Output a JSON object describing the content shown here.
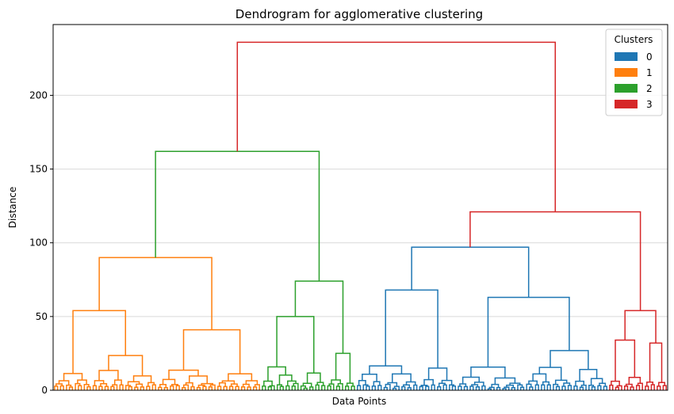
{
  "chart_data": {
    "type": "dendrogram",
    "title": "Dendrogram for agglomerative clustering",
    "xlabel": "Data Points",
    "ylabel": "Distance",
    "ylim": [
      0,
      248
    ],
    "yticks": [
      0,
      50,
      100,
      150,
      200
    ],
    "grid": "horizontal",
    "legend": {
      "title": "Clusters",
      "position": "top-right",
      "entries": [
        {
          "label": "0",
          "color": "#1f77b4"
        },
        {
          "label": "1",
          "color": "#ff7f0e"
        },
        {
          "label": "2",
          "color": "#2ca02c"
        },
        {
          "label": "3",
          "color": "#d62728"
        }
      ]
    },
    "clusters": [
      {
        "label": "1",
        "color": "#ff7f0e",
        "leaf_count": 70,
        "merge_height": 90,
        "subclusters": [
          {
            "leaves": 35,
            "height": 54
          },
          {
            "leaves": 35,
            "height": 41
          }
        ]
      },
      {
        "label": "2",
        "color": "#2ca02c",
        "leaf_count": 32,
        "merge_height": 74,
        "subclusters": [
          {
            "leaves": 22,
            "height": 50
          },
          {
            "leaves": 10,
            "height": 25
          }
        ]
      },
      {
        "label": "0",
        "color": "#1f77b4",
        "leaf_count": 85,
        "merge_height": 97,
        "subclusters": [
          {
            "leaves": 34,
            "height": 68
          },
          {
            "leaves": 51,
            "height": 63
          }
        ]
      },
      {
        "label": "3",
        "color": "#d62728",
        "leaf_count": 20,
        "merge_height": 54,
        "subclusters": [
          {
            "leaves": 12,
            "height": 34
          },
          {
            "leaves": 8,
            "height": 32
          }
        ]
      }
    ],
    "top_links": [
      {
        "joins": [
          "1",
          "2"
        ],
        "height": 162,
        "color": "#2ca02c"
      },
      {
        "joins": [
          "0",
          "3"
        ],
        "height": 121,
        "color": "#d62728"
      },
      {
        "joins": [
          "1+2",
          "0+3"
        ],
        "height": 236,
        "color": "#d62728"
      }
    ]
  }
}
